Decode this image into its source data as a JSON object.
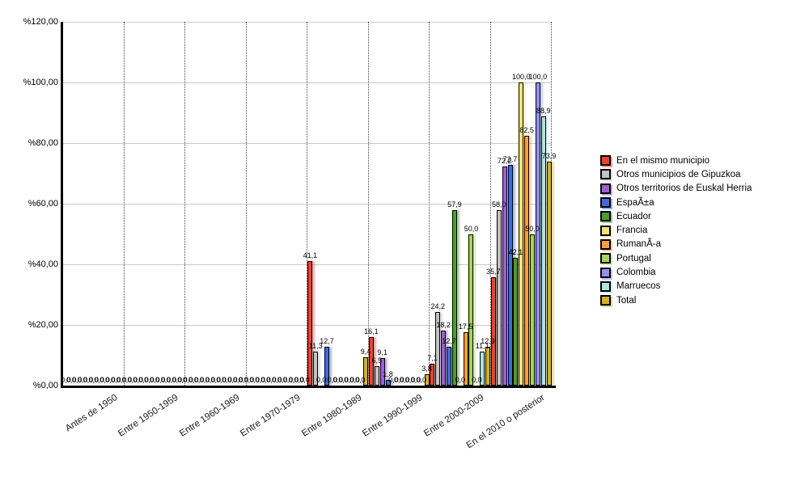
{
  "chart_data": {
    "type": "bar",
    "title": "",
    "xlabel": "",
    "ylabel": "",
    "categories": [
      "Antes de 1950",
      "Entre 1950-1959",
      "Entre 1960-1969",
      "Entre 1970-1979",
      "Entre 1980-1989",
      "Entre 1990-1999",
      "Entre 2000-2009",
      "En el 2010 o posterior"
    ],
    "series": [
      {
        "name": "En el mismo municipio",
        "color": "#f0402f",
        "values": [
          0,
          0,
          0,
          0,
          41.1,
          16.1,
          7.1,
          35.7
        ]
      },
      {
        "name": "Otros municipios de Gipuzkoa",
        "color": "#c3c3c3",
        "values": [
          0,
          0,
          0,
          0,
          11.3,
          6.5,
          24.2,
          58.0
        ]
      },
      {
        "name": "Otros territorios de Euskal Herria",
        "color": "#9e5fd0",
        "values": [
          0,
          0,
          0,
          0,
          0.0,
          9.1,
          18.2,
          72.2
        ]
      },
      {
        "name": "EspaÃ±a",
        "color": "#3f6bdb",
        "values": [
          0,
          0,
          0,
          0,
          12.7,
          1.8,
          12.7,
          72.7
        ]
      },
      {
        "name": "Ecuador",
        "color": "#4f9c31",
        "values": [
          0,
          0,
          0,
          0,
          0.0,
          0.0,
          57.9,
          42.1
        ]
      },
      {
        "name": "Francia",
        "color": "#f2e176",
        "values": [
          0,
          0,
          0,
          0,
          0.0,
          0.0,
          0.0,
          100.0
        ]
      },
      {
        "name": "RumanÃ-a",
        "color": "#f99d41",
        "values": [
          0,
          0,
          0,
          0,
          0.0,
          0.0,
          17.5,
          82.5
        ]
      },
      {
        "name": "Portugal",
        "color": "#a6d35c",
        "values": [
          0,
          0,
          0,
          0,
          0.0,
          0.0,
          50.0,
          50.0
        ]
      },
      {
        "name": "Colombia",
        "color": "#9191f2",
        "values": [
          0,
          0,
          0,
          0,
          0.0,
          0.0,
          0.0,
          100.0
        ]
      },
      {
        "name": "Marruecos",
        "color": "#ace5e3",
        "values": [
          0,
          0,
          0,
          0,
          0.0,
          0.0,
          11.1,
          88.9
        ]
      },
      {
        "name": "Total",
        "color": "#d2b424",
        "values": [
          0,
          0,
          0,
          0,
          9.4,
          3.8,
          12.9,
          73.9
        ]
      }
    ],
    "y_axis": {
      "min": 0,
      "max": 120,
      "step": 20,
      "tick_labels": [
        "%0,00",
        "%20,00",
        "%40,00",
        "%60,00",
        "%80,00",
        "%100,00",
        "%120,00"
      ]
    },
    "legend_position": "right",
    "grid": "horizontal solid light-gray lines every 20%, dotted vertical category separators",
    "value_labels": "above each bar, one decimal, comma as decimal separator"
  }
}
